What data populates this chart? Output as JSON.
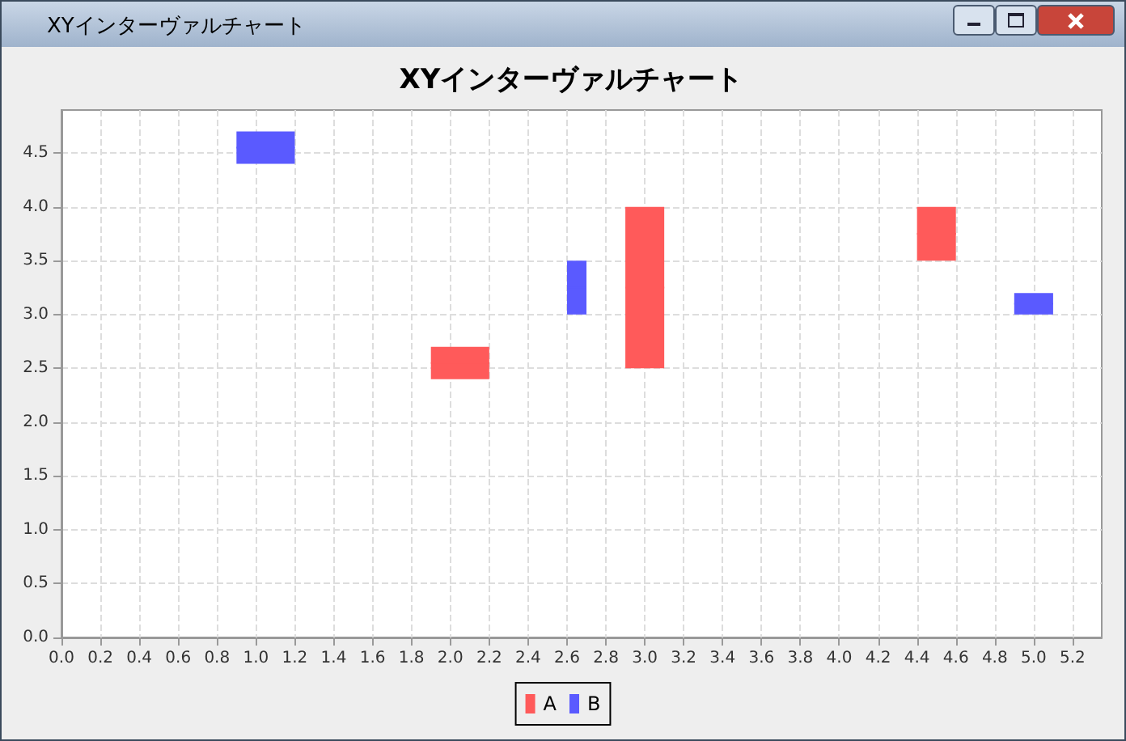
{
  "chart_data": {
    "type": "bar",
    "title": "XYインターヴァルチャート",
    "annotations": [
      "XYインターヴァルチャート"
    ],
    "series": [
      {
        "name": "A",
        "color": "#ff5a5a",
        "x": [
          2.05,
          3.0,
          4.5
        ],
        "xerrors": [
          0.15,
          0.1,
          0.1
        ],
        "base": [
          2.4,
          2.5,
          3.5
        ],
        "values": [
          0.3,
          1.5,
          0.5
        ]
      },
      {
        "name": "B",
        "color": "#5a5aff",
        "x": [
          1.05,
          2.65,
          5.0
        ],
        "xerrors": [
          0.15,
          0.05,
          0.1
        ],
        "base": [
          4.4,
          3.0,
          3.0
        ],
        "values": [
          0.3,
          0.5,
          0.2
        ]
      }
    ],
    "xlim": [
      0,
      5.35
    ],
    "xticks": [
      {
        "value": 0,
        "label": "0.0"
      },
      {
        "value": 0.2,
        "label": "0.2"
      },
      {
        "value": 0.4,
        "label": "0.4"
      },
      {
        "value": 0.6,
        "label": "0.6"
      },
      {
        "value": 0.8,
        "label": "0.8"
      },
      {
        "value": 1,
        "label": "1.0"
      },
      {
        "value": 1.2,
        "label": "1.2"
      },
      {
        "value": 1.4,
        "label": "1.4"
      },
      {
        "value": 1.6,
        "label": "1.6"
      },
      {
        "value": 1.8,
        "label": "1.8"
      },
      {
        "value": 2,
        "label": "2.0"
      },
      {
        "value": 2.2,
        "label": "2.2"
      },
      {
        "value": 2.4,
        "label": "2.4"
      },
      {
        "value": 2.6,
        "label": "2.6"
      },
      {
        "value": 2.8,
        "label": "2.8"
      },
      {
        "value": 3,
        "label": "3.0"
      },
      {
        "value": 3.2,
        "label": "3.2"
      },
      {
        "value": 3.4,
        "label": "3.4"
      },
      {
        "value": 3.6,
        "label": "3.6"
      },
      {
        "value": 3.8,
        "label": "3.8"
      },
      {
        "value": 4,
        "label": "4.0"
      },
      {
        "value": 4.2,
        "label": "4.2"
      },
      {
        "value": 4.4,
        "label": "4.4"
      },
      {
        "value": 4.6,
        "label": "4.6"
      },
      {
        "value": 4.8,
        "label": "4.8"
      },
      {
        "value": 5,
        "label": "5.0"
      },
      {
        "value": 5.2,
        "label": "5.2"
      }
    ],
    "ylim": [
      0,
      4.9
    ],
    "yticks": [
      {
        "value": 0,
        "label": "0.0"
      },
      {
        "value": 0.5,
        "label": "0.5"
      },
      {
        "value": 1,
        "label": "1.0"
      },
      {
        "value": 1.5,
        "label": "1.5"
      },
      {
        "value": 2,
        "label": "2.0"
      },
      {
        "value": 2.5,
        "label": "2.5"
      },
      {
        "value": 3,
        "label": "3.0"
      },
      {
        "value": 3.5,
        "label": "3.5"
      },
      {
        "value": 4,
        "label": "4.0"
      },
      {
        "value": 4.5,
        "label": "4.5"
      }
    ],
    "grid": true,
    "legend": "bottom"
  }
}
